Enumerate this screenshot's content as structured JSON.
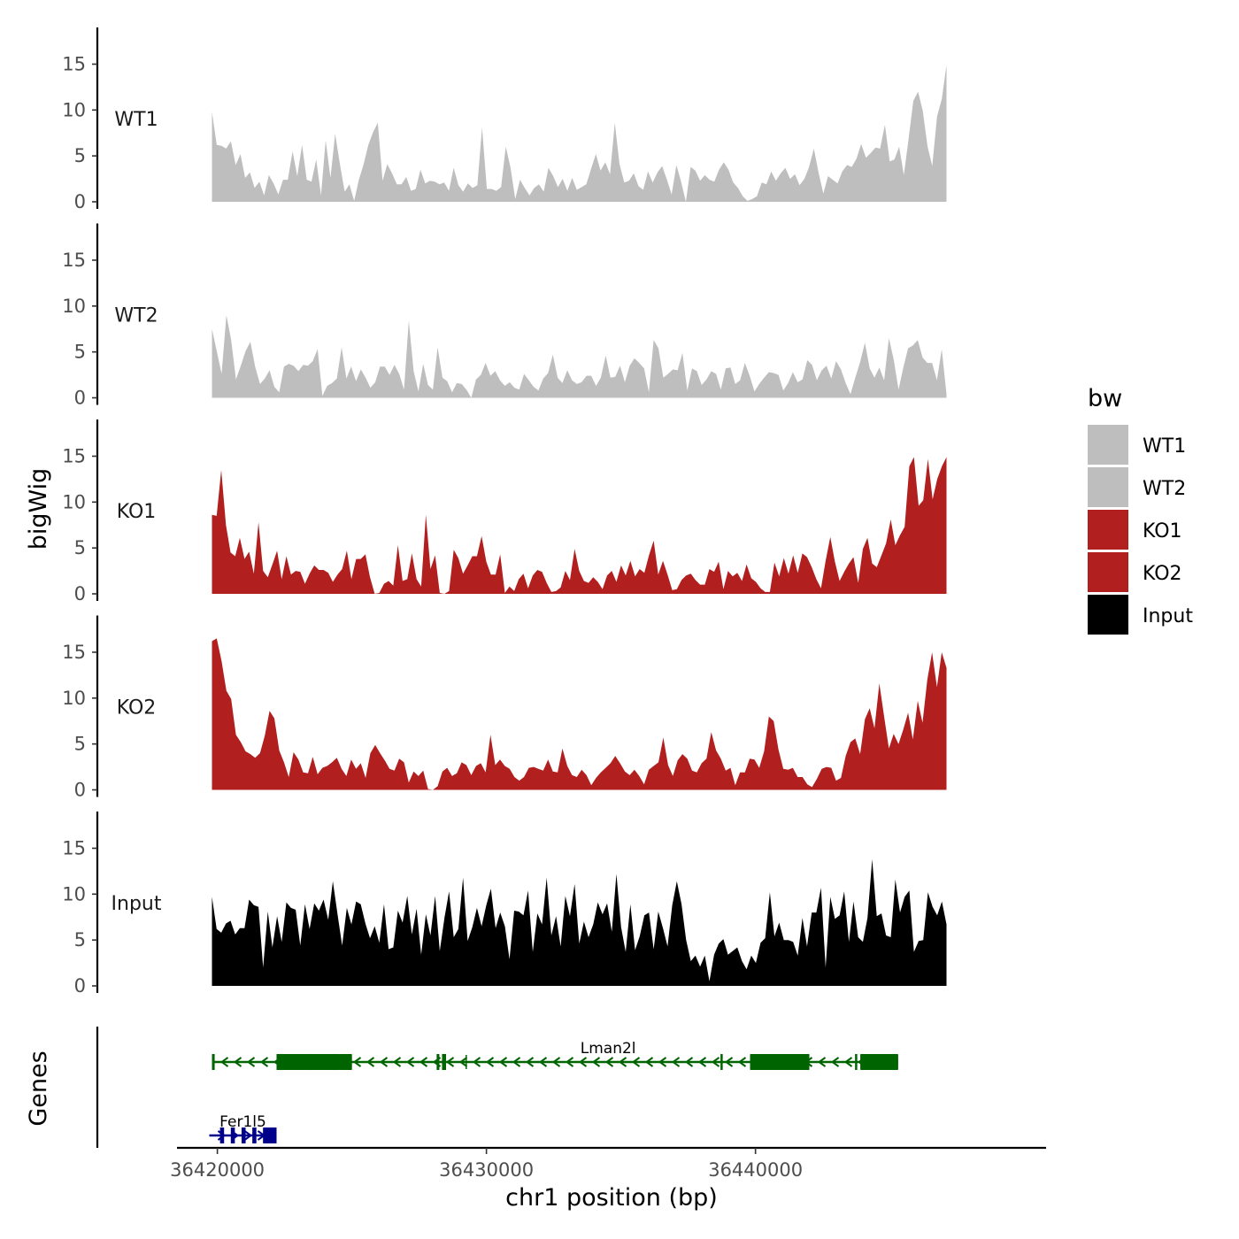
{
  "chart_data": {
    "type": "area",
    "x_label": "chr1 position (bp)",
    "y_label": "bigWig",
    "genes_label": "Genes",
    "xlim": [
      36418500,
      36450800
    ],
    "data_range": [
      36419800,
      36447100
    ],
    "ylim": [
      0,
      19
    ],
    "y_ticks": [
      0,
      5,
      10,
      15
    ],
    "y_tick_labels": [
      "0",
      "5",
      "10",
      "15"
    ],
    "x_ticks": [
      36420000,
      36430000,
      36440000
    ],
    "x_tick_labels": [
      "36420000",
      "36430000",
      "36440000"
    ],
    "legend": {
      "title": "bw",
      "position": "right",
      "entries": [
        {
          "label": "WT1",
          "color": "#bebebe"
        },
        {
          "label": "WT2",
          "color": "#bebebe"
        },
        {
          "label": "KO1",
          "color": "#b21f1f"
        },
        {
          "label": "KO2",
          "color": "#b21f1f"
        },
        {
          "label": "Input",
          "color": "#000000"
        }
      ]
    },
    "series": [
      {
        "name": "WT1",
        "color": "#bebebe",
        "values": [
          9.8,
          6.2,
          6.1,
          5.8,
          6.6,
          4.0,
          5.2,
          2.6,
          3.2,
          1.5,
          2.2,
          0.7,
          2.9,
          2.0,
          0.8,
          2.4,
          2.4,
          5.5,
          2.8,
          6.2,
          2.4,
          2.2,
          4.6,
          0.7,
          6.7,
          2.6,
          7.4,
          4.1,
          1.1,
          1.9,
          0.1,
          2.4,
          4.1,
          6.2,
          7.6,
          8.6,
          2.3,
          4.1,
          3.1,
          1.9,
          1.9,
          2.7,
          1.2,
          1.4,
          3.5,
          2.0,
          2.3,
          2.2,
          1.9,
          2.1,
          1.2,
          3.7,
          1.8,
          1.1,
          2.0,
          1.5,
          1.8,
          8.1,
          1.4,
          1.4,
          1.2,
          1.6,
          6.0,
          3.7,
          0.3,
          2.4,
          1.5,
          0.7,
          1.5,
          1.9,
          1.1,
          3.7,
          2.8,
          1.6,
          2.5,
          1.2,
          2.6,
          1.3,
          1.6,
          1.9,
          3.6,
          5.2,
          3.4,
          4.3,
          3.0,
          8.6,
          4.1,
          2.1,
          2.3,
          3.1,
          1.7,
          1.3,
          3.3,
          2.1,
          3.2,
          3.9,
          2.4,
          0.8,
          4.0,
          2.2,
          0.0,
          3.8,
          3.4,
          2.3,
          2.9,
          2.4,
          2.2,
          3.5,
          4.3,
          3.5,
          2.1,
          1.5,
          0.6,
          0.1,
          0.3,
          0.6,
          2.1,
          1.9,
          3.3,
          2.3,
          3.1,
          3.7,
          2.5,
          3.0,
          1.8,
          2.5,
          3.8,
          5.8,
          3.2,
          0.9,
          2.8,
          2.4,
          2.0,
          3.3,
          4.0,
          3.8,
          4.7,
          6.3,
          4.8,
          5.3,
          5.9,
          5.8,
          8.4,
          4.4,
          4.6,
          6.0,
          2.9,
          6.9,
          11.0,
          12.0,
          9.9,
          6.0,
          3.9,
          9.3,
          11.2,
          14.9
        ]
      },
      {
        "name": "WT2",
        "color": "#bebebe",
        "values": [
          7.5,
          5.1,
          2.6,
          9.0,
          6.3,
          2.0,
          3.5,
          5.1,
          6.1,
          3.4,
          1.5,
          2.1,
          3.0,
          1.2,
          0.6,
          3.4,
          3.7,
          3.5,
          2.9,
          3.6,
          3.5,
          4.0,
          5.3,
          0.2,
          1.3,
          1.6,
          2.1,
          5.5,
          2.1,
          3.4,
          1.8,
          3.1,
          2.2,
          1.1,
          1.7,
          3.4,
          3.4,
          2.5,
          3.6,
          2.6,
          0.9,
          8.4,
          2.9,
          0.7,
          3.7,
          1.4,
          0.9,
          5.5,
          2.2,
          1.8,
          0.6,
          1.6,
          1.5,
          0.9,
          0.0,
          2.0,
          2.5,
          3.8,
          2.4,
          2.9,
          1.9,
          1.3,
          1.7,
          1.1,
          0.9,
          2.6,
          1.9,
          1.2,
          0.8,
          2.1,
          2.7,
          4.7,
          2.2,
          1.6,
          3.0,
          1.9,
          1.5,
          1.7,
          2.4,
          2.4,
          1.3,
          2.2,
          4.6,
          2.2,
          2.3,
          3.5,
          1.7,
          3.5,
          4.3,
          3.8,
          3.2,
          0.6,
          6.3,
          5.4,
          2.2,
          2.6,
          3.1,
          3.0,
          4.9,
          0.8,
          3.2,
          2.9,
          1.4,
          2.0,
          2.9,
          2.6,
          0.9,
          3.2,
          3.3,
          1.5,
          1.9,
          3.8,
          2.4,
          0.7,
          1.5,
          2.2,
          2.8,
          2.7,
          2.5,
          0.8,
          1.6,
          2.8,
          1.7,
          2.0,
          4.1,
          3.6,
          1.9,
          3.0,
          3.5,
          2.1,
          4.0,
          3.1,
          1.6,
          0.4,
          2.2,
          3.9,
          6.0,
          3.2,
          2.2,
          3.3,
          1.9,
          6.5,
          4.2,
          0.9,
          3.3,
          5.4,
          5.7,
          6.3,
          4.4,
          3.8,
          3.8,
          1.9,
          5.3,
          0.4
        ]
      },
      {
        "name": "KO1",
        "color": "#b21f1f",
        "values": [
          8.6,
          8.5,
          13.5,
          7.5,
          4.5,
          4.1,
          6.1,
          3.8,
          4.6,
          2.2,
          7.8,
          2.5,
          1.8,
          3.2,
          4.7,
          1.6,
          4.1,
          2.1,
          2.5,
          2.4,
          1.1,
          2.2,
          3.1,
          2.6,
          2.6,
          2.3,
          1.3,
          2.1,
          2.7,
          4.7,
          1.6,
          3.8,
          3.8,
          4.3,
          1.8,
          0.0,
          0.1,
          1.1,
          1.4,
          0.9,
          5.3,
          1.4,
          1.6,
          4.4,
          1.6,
          0.8,
          8.6,
          2.7,
          4.2,
          0.1,
          0.0,
          0.3,
          4.8,
          3.9,
          2.2,
          3.1,
          4.1,
          4.1,
          6.3,
          3.5,
          2.1,
          2.1,
          4.3,
          0.1,
          0.8,
          0.3,
          1.6,
          2.2,
          0.6,
          2.0,
          2.6,
          2.4,
          1.2,
          0.2,
          0.3,
          0.7,
          2.5,
          1.5,
          4.9,
          2.5,
          1.4,
          1.2,
          1.8,
          1.3,
          0.5,
          2.0,
          2.5,
          1.3,
          3.1,
          2.0,
          3.6,
          1.9,
          2.7,
          2.3,
          4.2,
          5.8,
          2.1,
          3.6,
          2.1,
          0.4,
          0.5,
          1.5,
          2.0,
          2.2,
          1.5,
          1.0,
          1.0,
          2.7,
          2.4,
          3.5,
          0.5,
          2.5,
          1.9,
          2.3,
          1.4,
          3.2,
          1.7,
          1.3,
          0.6,
          0.2,
          0.2,
          3.4,
          1.9,
          3.9,
          2.2,
          4.2,
          2.3,
          4.4,
          4.0,
          2.9,
          1.6,
          0.6,
          3.6,
          6.2,
          3.5,
          1.4,
          2.4,
          3.3,
          4.0,
          1.2,
          4.9,
          6.1,
          3.3,
          2.9,
          4.2,
          5.5,
          8.1,
          5.3,
          6.4,
          7.3,
          13.9,
          14.9,
          9.6,
          10.2,
          14.7,
          10.3,
          12.5,
          13.9,
          14.9
        ]
      },
      {
        "name": "KO2",
        "color": "#b21f1f",
        "values": [
          16.2,
          16.5,
          14.0,
          10.8,
          9.9,
          6.0,
          5.2,
          4.2,
          3.9,
          3.5,
          4.0,
          5.9,
          8.6,
          7.8,
          4.3,
          3.0,
          1.4,
          4.1,
          3.3,
          1.9,
          1.8,
          3.6,
          1.7,
          2.4,
          2.6,
          3.0,
          3.5,
          2.3,
          1.5,
          3.3,
          2.3,
          2.9,
          1.3,
          4.0,
          4.9,
          4.0,
          3.2,
          2.3,
          2.1,
          3.4,
          3.0,
          0.8,
          2.0,
          1.5,
          2.1,
          0.1,
          0.0,
          0.4,
          2.0,
          2.4,
          1.5,
          1.8,
          3.0,
          2.7,
          1.6,
          2.6,
          2.9,
          1.9,
          6.0,
          2.7,
          3.3,
          2.6,
          2.3,
          1.4,
          1.0,
          1.4,
          2.4,
          2.5,
          2.3,
          2.1,
          3.3,
          2.0,
          1.9,
          4.5,
          2.6,
          1.6,
          1.4,
          2.2,
          1.6,
          0.5,
          1.3,
          1.9,
          2.4,
          2.9,
          3.7,
          2.9,
          2.0,
          1.6,
          2.2,
          1.5,
          0.6,
          2.2,
          2.6,
          3.0,
          5.7,
          2.7,
          1.5,
          3.2,
          3.9,
          3.4,
          2.1,
          1.9,
          2.9,
          3.4,
          6.3,
          4.3,
          3.4,
          2.1,
          2.4,
          0.5,
          1.9,
          1.9,
          3.4,
          3.3,
          2.4,
          4.2,
          8.0,
          7.5,
          4.4,
          2.3,
          2.2,
          2.4,
          1.4,
          1.4,
          0.6,
          0.3,
          1.2,
          2.3,
          2.5,
          2.4,
          1.0,
          1.3,
          3.7,
          5.2,
          5.6,
          3.9,
          7.7,
          8.9,
          6.7,
          11.6,
          8.0,
          4.5,
          6.1,
          5.0,
          6.6,
          8.4,
          5.5,
          9.7,
          7.3,
          12.0,
          15.0,
          11.2,
          15.0,
          13.3
        ]
      },
      {
        "name": "Input",
        "color": "#000000",
        "values": [
          9.7,
          6.2,
          5.8,
          6.8,
          7.1,
          5.6,
          6.3,
          6.3,
          9.4,
          8.8,
          8.6,
          2.0,
          8.1,
          4.2,
          7.6,
          4.8,
          9.1,
          8.5,
          8.3,
          4.4,
          8.9,
          6.2,
          9.0,
          8.2,
          9.4,
          7.2,
          11.4,
          7.8,
          4.4,
          8.5,
          6.7,
          9.2,
          8.9,
          6.8,
          5.2,
          6.5,
          4.7,
          8.9,
          4.0,
          4.2,
          8.2,
          6.9,
          9.8,
          5.6,
          8.4,
          3.4,
          7.8,
          5.5,
          9.8,
          3.8,
          7.4,
          10.3,
          5.3,
          6.2,
          11.8,
          4.9,
          6.4,
          8.5,
          6.5,
          8.8,
          10.6,
          6.3,
          8.0,
          6.5,
          2.9,
          8.2,
          8.1,
          7.7,
          10.4,
          3.7,
          7.9,
          6.7,
          11.8,
          5.5,
          7.6,
          4.3,
          9.8,
          7.6,
          11.1,
          4.6,
          7.0,
          5.3,
          6.7,
          9.1,
          7.8,
          9.0,
          5.9,
          12.2,
          6.4,
          3.7,
          8.9,
          3.9,
          5.4,
          7.7,
          8.0,
          4.0,
          8.1,
          6.3,
          4.3,
          8.8,
          11.4,
          8.9,
          5.0,
          2.7,
          3.3,
          2.1,
          3.3,
          0.5,
          3.4,
          4.6,
          5.1,
          3.4,
          3.8,
          4.2,
          2.7,
          1.8,
          3.3,
          2.5,
          4.7,
          5.2,
          10.2,
          5.4,
          6.9,
          5.0,
          5.0,
          4.8,
          3.3,
          7.4,
          4.3,
          8.0,
          8.0,
          10.7,
          2.0,
          9.7,
          7.3,
          7.7,
          10.3,
          4.8,
          9.2,
          5.3,
          4.8,
          7.4,
          13.8,
          7.6,
          7.9,
          5.5,
          5.3,
          11.6,
          8.0,
          9.7,
          10.4,
          3.7,
          4.9,
          5.0,
          10.2,
          8.6,
          7.7,
          9.2,
          6.7
        ]
      }
    ],
    "genes": [
      {
        "name": "Lman2l",
        "color": "#006400",
        "strand": "-",
        "start": 36419800,
        "end": 36445300,
        "track": 0,
        "exons": [
          [
            36419800,
            36419900
          ],
          [
            36422200,
            36423300
          ],
          [
            36423300,
            36424550
          ],
          [
            36424550,
            36425000
          ],
          [
            36428150,
            36428250
          ],
          [
            36428350,
            36428500
          ],
          [
            36438700,
            36438780
          ],
          [
            36439800,
            36442000
          ],
          [
            36443700,
            36443780
          ],
          [
            36443900,
            36445300
          ]
        ],
        "thick_exons": [
          [
            36422200,
            36425000
          ],
          [
            36439800,
            36442000
          ],
          [
            36443900,
            36445300
          ]
        ],
        "tss_mark": 36429250
      },
      {
        "name": "Fer1l5",
        "color": "#00008b",
        "strand": "+",
        "start": 36419700,
        "end": 36422200,
        "track": 1,
        "exons": [
          [
            36420100,
            36420250
          ],
          [
            36420500,
            36420650
          ],
          [
            36420900,
            36421050
          ],
          [
            36421300,
            36421450
          ],
          [
            36421700,
            36422200
          ]
        ],
        "thick_exons": [
          [
            36421700,
            36422200
          ]
        ]
      }
    ]
  }
}
